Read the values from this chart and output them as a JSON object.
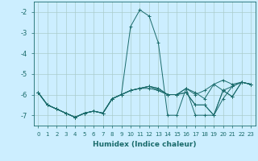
{
  "xlabel": "Humidex (Indice chaleur)",
  "background_color": "#cceeff",
  "line_color": "#1a6b6b",
  "grid_color": "#aacccc",
  "xlim": [
    -0.5,
    23.5
  ],
  "ylim": [
    -7.5,
    -1.5
  ],
  "xticks": [
    0,
    1,
    2,
    3,
    4,
    5,
    6,
    7,
    8,
    9,
    10,
    11,
    12,
    13,
    14,
    15,
    16,
    17,
    18,
    19,
    20,
    21,
    22,
    23
  ],
  "yticks": [
    -7,
    -6,
    -5,
    -4,
    -3,
    -2
  ],
  "series": [
    [
      -5.9,
      -6.5,
      -6.7,
      -6.9,
      -7.1,
      -6.9,
      -6.8,
      -6.9,
      -6.2,
      -6.0,
      -2.7,
      -1.9,
      -2.2,
      -3.5,
      -7.0,
      -7.0,
      -5.7,
      -7.0,
      -7.0,
      -7.0,
      -5.8,
      -6.1,
      -5.4,
      -5.5
    ],
    [
      -5.9,
      -6.5,
      -6.7,
      -6.9,
      -7.1,
      -6.9,
      -6.8,
      -6.9,
      -6.2,
      -6.0,
      -5.8,
      -5.7,
      -5.6,
      -5.7,
      -6.0,
      -6.0,
      -5.7,
      -6.0,
      -5.8,
      -5.5,
      -5.3,
      -5.5,
      -5.4,
      -5.5
    ],
    [
      -5.9,
      -6.5,
      -6.7,
      -6.9,
      -7.1,
      -6.9,
      -6.8,
      -6.9,
      -6.2,
      -6.0,
      -5.8,
      -5.7,
      -5.6,
      -5.7,
      -6.0,
      -6.0,
      -5.7,
      -5.9,
      -6.2,
      -5.5,
      -5.8,
      -5.6,
      -5.4,
      -5.5
    ],
    [
      -5.9,
      -6.5,
      -6.7,
      -6.9,
      -7.1,
      -6.9,
      -6.8,
      -6.9,
      -6.2,
      -6.0,
      -5.8,
      -5.7,
      -5.6,
      -5.8,
      -6.0,
      -6.0,
      -5.9,
      -6.5,
      -6.5,
      -7.0,
      -6.2,
      -5.6,
      -5.4,
      -5.5
    ],
    [
      -5.9,
      -6.5,
      -6.7,
      -6.9,
      -7.1,
      -6.9,
      -6.8,
      -6.9,
      -6.2,
      -6.0,
      -5.8,
      -5.7,
      -5.7,
      -5.8,
      -6.0,
      -6.0,
      -5.9,
      -6.5,
      -6.5,
      -7.0,
      -5.8,
      -6.1,
      -5.4,
      -5.5
    ]
  ]
}
